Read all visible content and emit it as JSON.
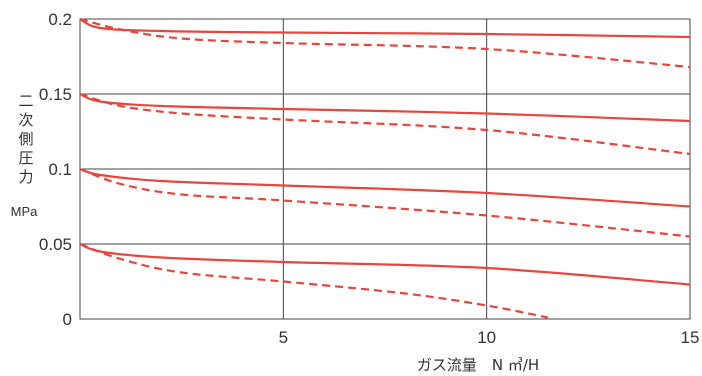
{
  "chart_data": {
    "type": "line",
    "title": "",
    "xlabel": "ガス流量　N ㎥/H",
    "ylabel": "二次側圧力",
    "yunit": "MPa",
    "xlim": [
      0,
      15
    ],
    "ylim": [
      0,
      0.2
    ],
    "x_ticks": [
      "5",
      "10",
      "15"
    ],
    "y_ticks": [
      "0",
      "0.05",
      "0.1",
      "0.15",
      "0.2"
    ],
    "grid": true,
    "line_color": "#e8453c",
    "series": [
      {
        "style": "solid",
        "x": [
          0,
          0.5,
          2,
          5,
          10,
          15
        ],
        "y": [
          0.2,
          0.194,
          0.192,
          0.191,
          0.19,
          0.188
        ]
      },
      {
        "style": "dashed",
        "x": [
          0,
          1,
          2.5,
          5,
          10,
          15
        ],
        "y": [
          0.2,
          0.193,
          0.187,
          0.184,
          0.18,
          0.168
        ]
      },
      {
        "style": "solid",
        "x": [
          0,
          0.5,
          2,
          5,
          10,
          15
        ],
        "y": [
          0.15,
          0.145,
          0.142,
          0.14,
          0.137,
          0.132
        ]
      },
      {
        "style": "dashed",
        "x": [
          0,
          1,
          2.5,
          5,
          10,
          15
        ],
        "y": [
          0.15,
          0.142,
          0.137,
          0.133,
          0.126,
          0.11
        ]
      },
      {
        "style": "solid",
        "x": [
          0,
          0.5,
          2,
          5,
          10,
          15
        ],
        "y": [
          0.1,
          0.096,
          0.092,
          0.089,
          0.084,
          0.075
        ]
      },
      {
        "style": "dashed",
        "x": [
          0,
          1,
          2.5,
          5,
          10,
          15
        ],
        "y": [
          0.1,
          0.09,
          0.083,
          0.079,
          0.069,
          0.055
        ]
      },
      {
        "style": "solid",
        "x": [
          0,
          0.5,
          2,
          5,
          10,
          15
        ],
        "y": [
          0.05,
          0.045,
          0.041,
          0.038,
          0.034,
          0.023
        ]
      },
      {
        "style": "dashed",
        "x": [
          0,
          1,
          2.5,
          5,
          8,
          10,
          11.5
        ],
        "y": [
          0.05,
          0.04,
          0.031,
          0.025,
          0.017,
          0.009,
          0.001
        ]
      }
    ]
  }
}
